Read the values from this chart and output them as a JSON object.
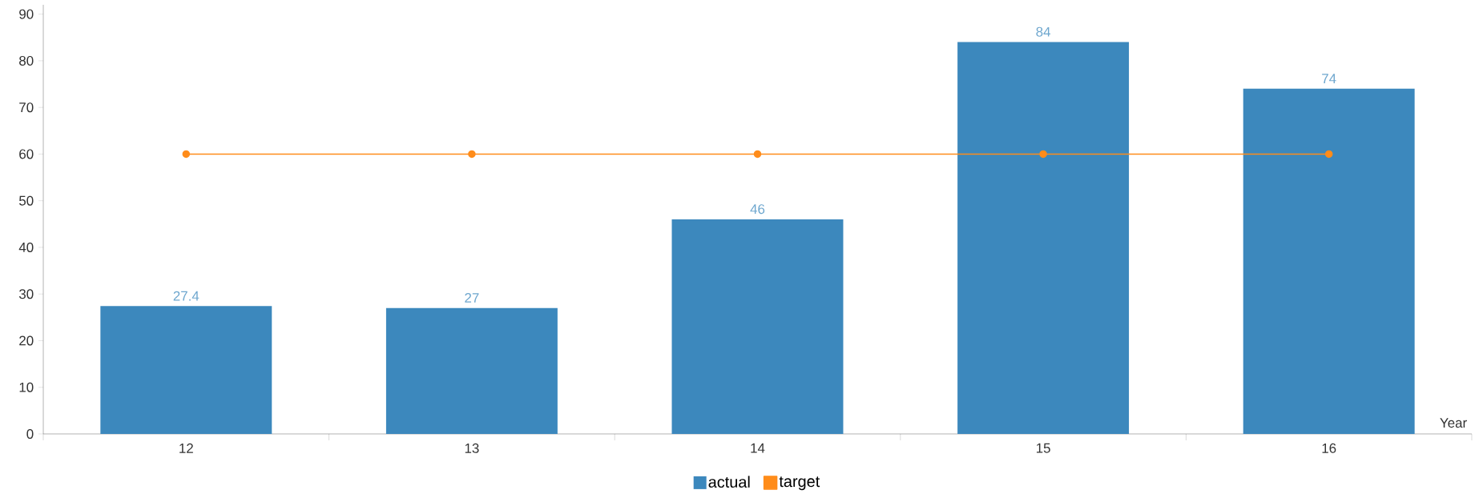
{
  "chart_data": {
    "type": "bar",
    "xlabel": "Year",
    "categories": [
      "12",
      "13",
      "14",
      "15",
      "16"
    ],
    "series": [
      {
        "name": "actual",
        "type": "bar",
        "color": "#3c88bd",
        "values": [
          27.4,
          27,
          46,
          84,
          74
        ],
        "value_labels": [
          "27.4",
          "27",
          "46",
          "84",
          "74"
        ]
      },
      {
        "name": "target",
        "type": "line",
        "color": "#ff8c1a",
        "marker": "circle",
        "values": [
          60,
          60,
          60,
          60,
          60
        ]
      }
    ],
    "ylim": [
      0,
      92
    ],
    "yticks": [
      0,
      10,
      20,
      30,
      40,
      50,
      60,
      70,
      80,
      90
    ],
    "legend": "bottom"
  }
}
